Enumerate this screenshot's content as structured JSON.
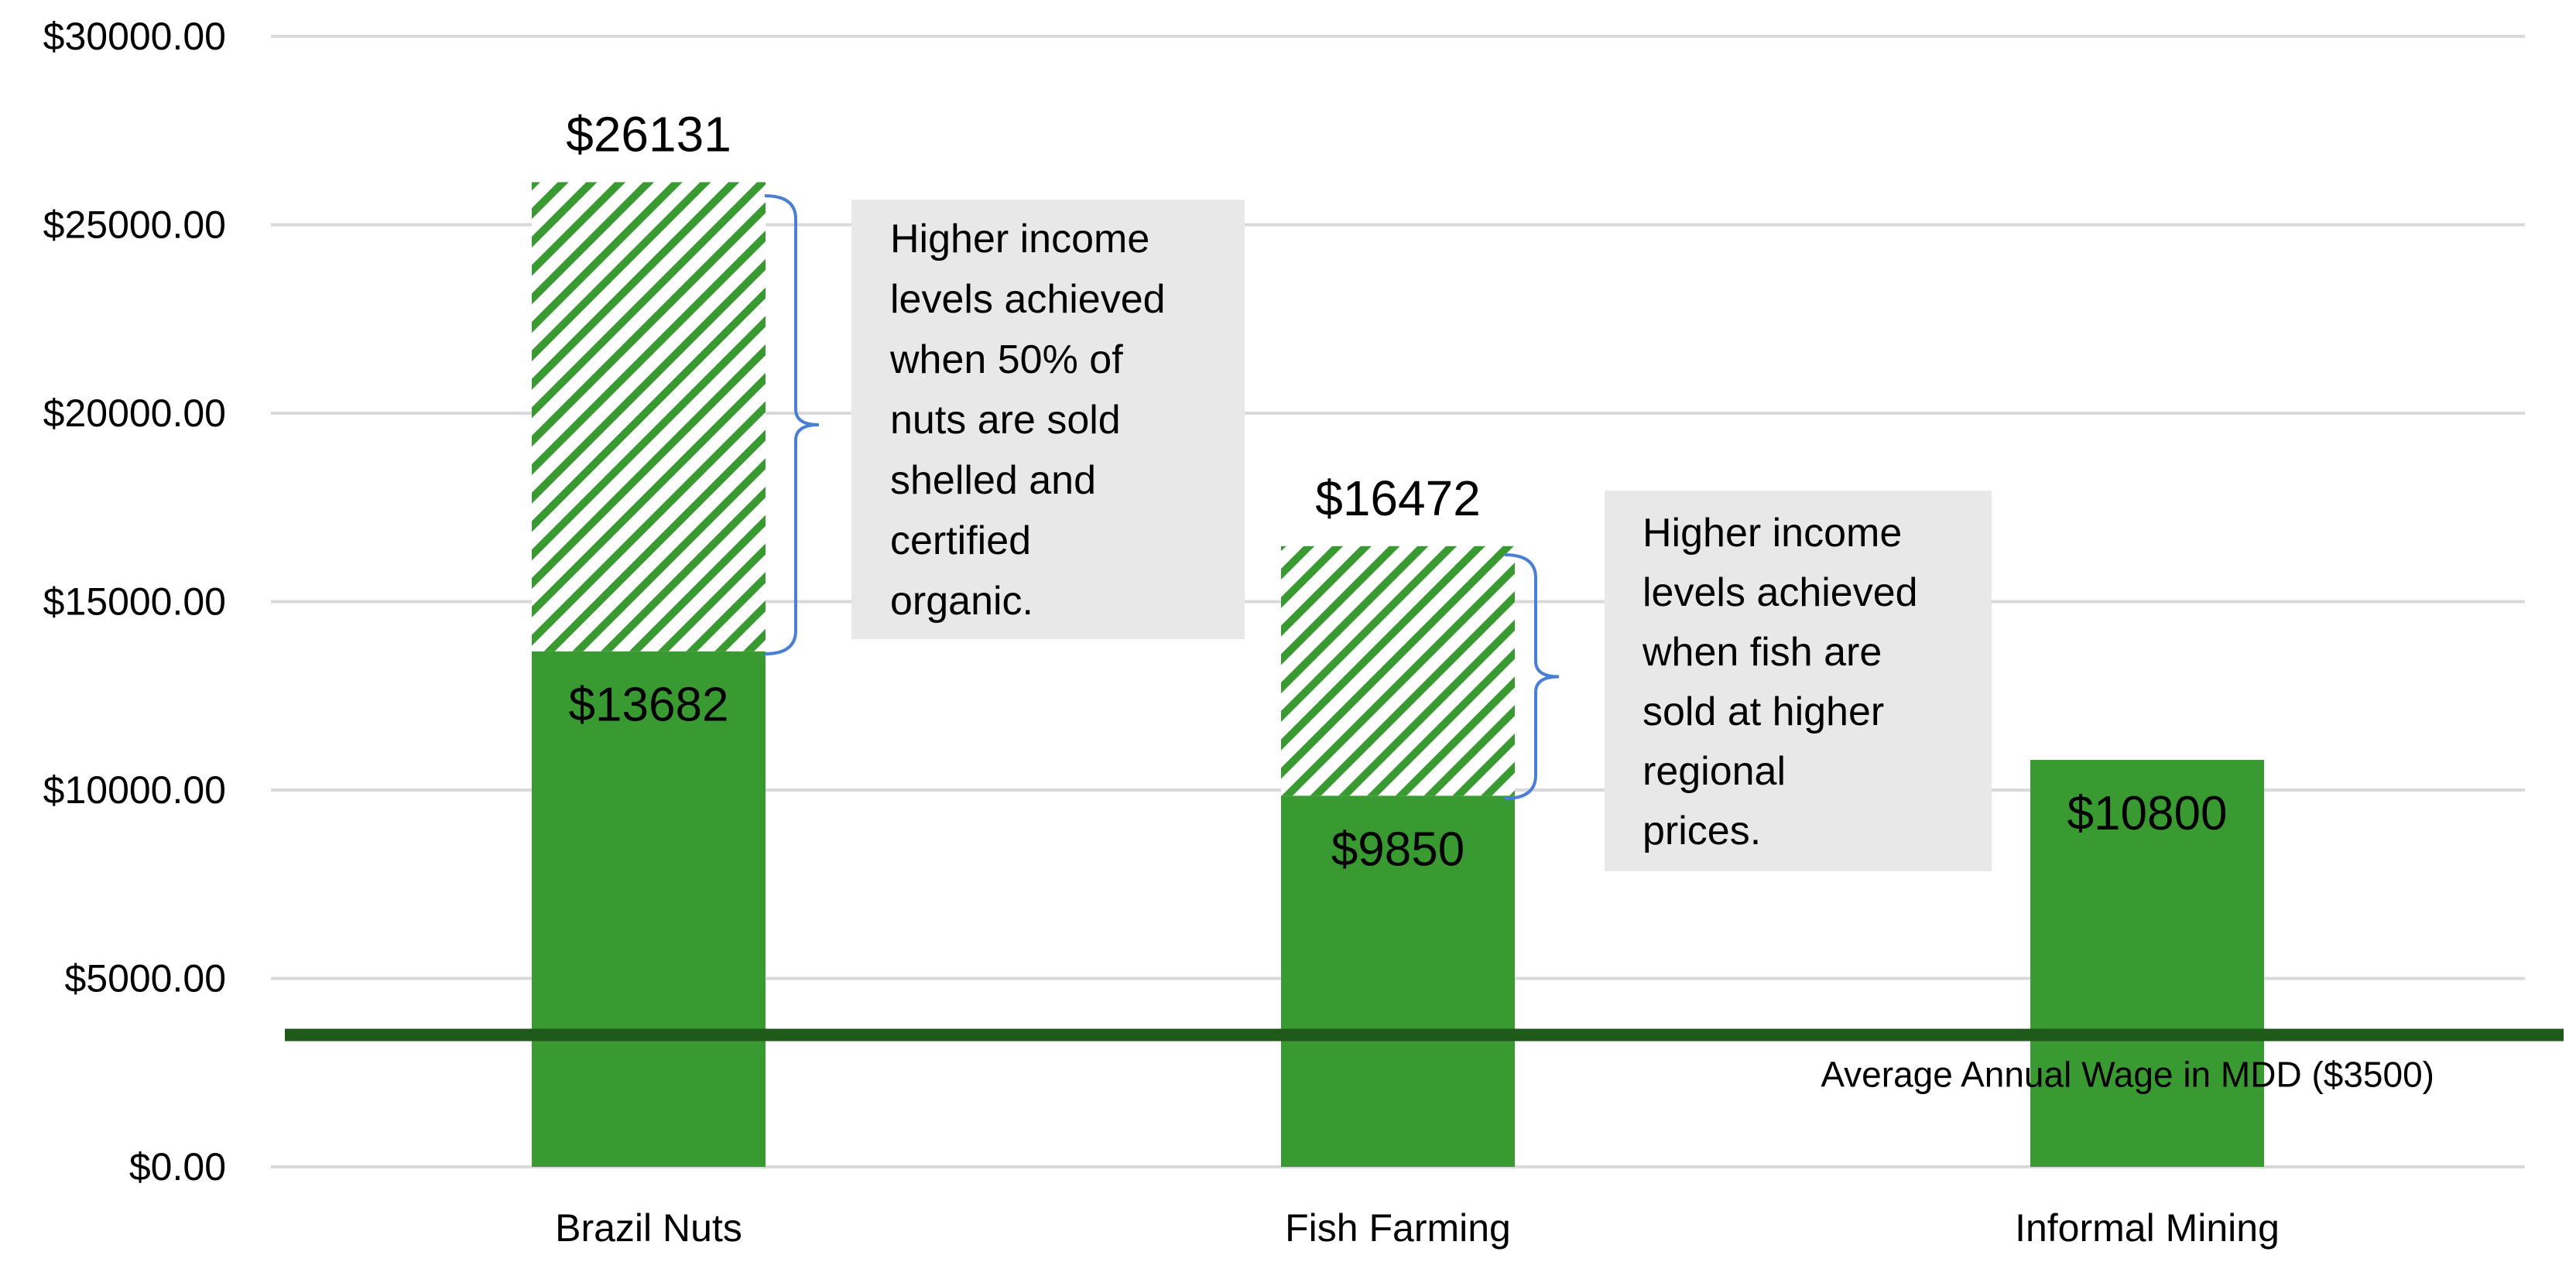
{
  "chart_data": {
    "type": "bar",
    "categories": [
      "Brazil Nuts",
      "Fish Farming",
      "Informal Mining"
    ],
    "series": [
      {
        "values": [
          13682,
          9850,
          10800
        ]
      },
      {
        "values": [
          12449,
          6622,
          0
        ]
      }
    ],
    "totals": [
      26131,
      16472,
      10800
    ],
    "total_labels": [
      "$26131",
      "$16472",
      ""
    ],
    "base_labels": [
      "$13682",
      "$9850",
      "$10800"
    ],
    "ylim": [
      0,
      30000
    ],
    "yticks": [
      0,
      5000,
      10000,
      15000,
      20000,
      25000,
      30000
    ],
    "ytick_labels": [
      "$0.00",
      "$5000.00",
      "$10000.00",
      "$15000.00",
      "$20000.00",
      "$25000.00",
      "$30000.00"
    ],
    "grid": true,
    "colors": {
      "base": "#3a9a32",
      "hatch": "#3a9a32",
      "reference": "#1f5a1a",
      "grid": "#d9d9d9",
      "annotation_box": "#e8e8e8",
      "bracket": "#4a7fd4"
    },
    "reference_line": {
      "value": 3500,
      "label": "Average Annual Wage in MDD ($3500)"
    },
    "annotations": [
      {
        "category": "Brazil Nuts",
        "lines": [
          "Higher income",
          "levels achieved",
          "when 50% of",
          "nuts are sold",
          "shelled and",
          "certified",
          "organic."
        ]
      },
      {
        "category": "Fish Farming",
        "lines": [
          "Higher income",
          "levels achieved",
          "when fish are",
          "sold at higher",
          "regional",
          "prices."
        ]
      }
    ]
  }
}
